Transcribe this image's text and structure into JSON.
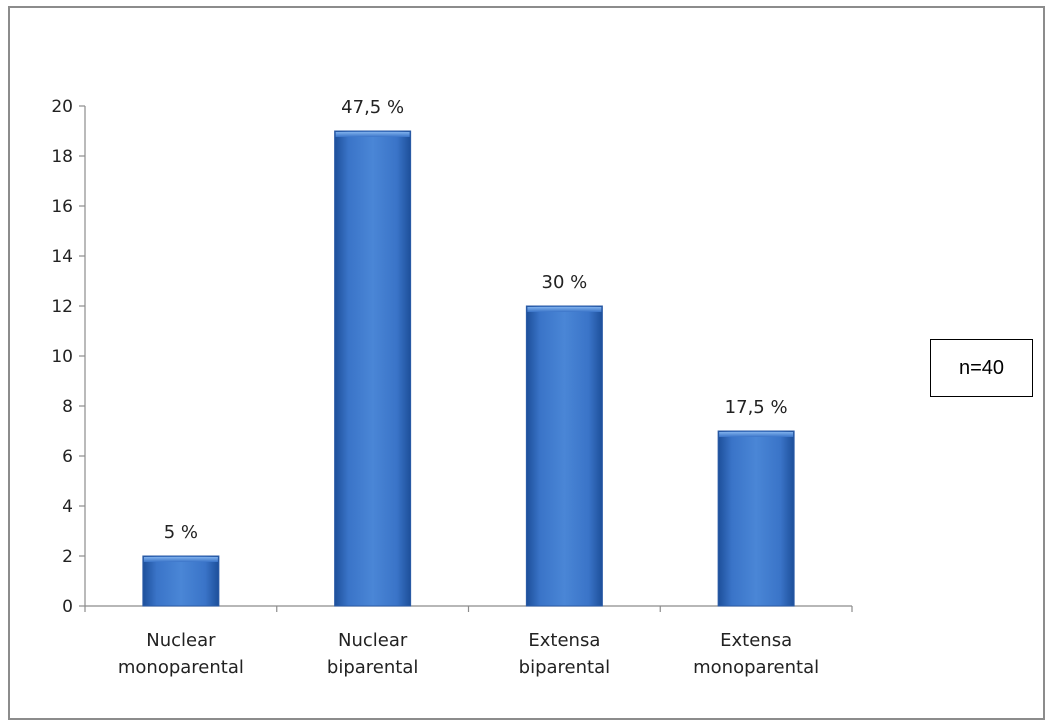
{
  "chart_data": {
    "type": "bar",
    "categories": [
      [
        "Nuclear",
        "monoparental"
      ],
      [
        "Nuclear",
        "biparental"
      ],
      [
        "Extensa",
        "biparental"
      ],
      [
        "Extensa",
        "monoparental"
      ]
    ],
    "values": [
      2,
      19,
      12,
      7
    ],
    "data_labels": [
      "5 %",
      "47,5 %",
      "30 %",
      "17,5 %"
    ],
    "y_ticks": [
      "0",
      "2",
      "4",
      "6",
      "8",
      "10",
      "12",
      "14",
      "16",
      "18",
      "20"
    ],
    "ylim": [
      0,
      20
    ],
    "grid": false,
    "bar_color": "#3a6fc0",
    "annotation": "n=40"
  }
}
